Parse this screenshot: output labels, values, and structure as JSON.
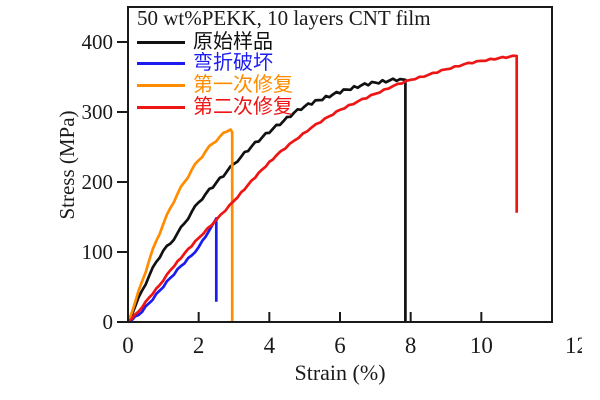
{
  "figure": {
    "background": "#ffffff",
    "axis_color": "#1a1a1a"
  },
  "chart_data": {
    "type": "line",
    "title": "50 wt%PEKK, 10 layers CNT film",
    "xlabel": "Strain (%)",
    "ylabel": "Stress (MPa)",
    "xlim": [
      0,
      12
    ],
    "ylim": [
      0,
      450
    ],
    "x_ticks": [
      0,
      2,
      4,
      6,
      8,
      10,
      12
    ],
    "x_tick_labels": [
      "0",
      "2",
      "4",
      "6",
      "8",
      "10",
      "12"
    ],
    "y_ticks": [
      0,
      100,
      200,
      300,
      400
    ],
    "y_tick_labels": [
      "0",
      "100",
      "200",
      "300",
      "400"
    ],
    "grid": false,
    "legend_position": "top-left-inside",
    "series": [
      {
        "id": "original-sample",
        "label": "原始样品",
        "color": "#111111",
        "wiggle": 1.3,
        "breaks_at": {
          "strain": 7.85,
          "peak_stress": 346,
          "drop_to": 0
        },
        "points": [
          [
            0,
            0
          ],
          [
            0.2,
            22
          ],
          [
            0.4,
            45
          ],
          [
            0.6,
            66
          ],
          [
            0.8,
            86
          ],
          [
            1.0,
            102
          ],
          [
            1.2,
            112
          ],
          [
            1.4,
            127
          ],
          [
            1.6,
            141
          ],
          [
            1.8,
            157
          ],
          [
            2.0,
            171
          ],
          [
            2.2,
            183
          ],
          [
            2.5,
            199
          ],
          [
            2.8,
            215
          ],
          [
            3.0,
            226
          ],
          [
            3.2,
            236
          ],
          [
            3.5,
            251
          ],
          [
            3.8,
            264
          ],
          [
            4.1,
            276
          ],
          [
            4.4,
            287
          ],
          [
            4.7,
            299
          ],
          [
            5.0,
            308
          ],
          [
            5.4,
            317
          ],
          [
            5.8,
            325
          ],
          [
            6.2,
            332
          ],
          [
            6.6,
            338
          ],
          [
            7.0,
            342
          ],
          [
            7.4,
            345
          ],
          [
            7.7,
            347
          ],
          [
            7.85,
            346
          ],
          [
            7.85,
            0
          ]
        ]
      },
      {
        "id": "bend-damaged",
        "label": "弯折破坏",
        "color": "#1c1cf0",
        "wiggle": 0.9,
        "breaks_at": {
          "strain": 2.5,
          "peak_stress": 148,
          "drop_to": 29
        },
        "points": [
          [
            0,
            0
          ],
          [
            0.3,
            10
          ],
          [
            0.6,
            27
          ],
          [
            0.9,
            45
          ],
          [
            1.2,
            63
          ],
          [
            1.5,
            80
          ],
          [
            1.8,
            95
          ],
          [
            2.0,
            107
          ],
          [
            2.2,
            122
          ],
          [
            2.35,
            135
          ],
          [
            2.5,
            148
          ],
          [
            2.5,
            29
          ]
        ]
      },
      {
        "id": "first-repair",
        "label": "第一次修复",
        "color": "#ff8c00",
        "wiggle": 1.3,
        "breaks_at": {
          "strain": 2.95,
          "peak_stress": 275,
          "drop_to": 0
        },
        "points": [
          [
            0,
            0
          ],
          [
            0.2,
            28
          ],
          [
            0.4,
            58
          ],
          [
            0.6,
            88
          ],
          [
            0.8,
            116
          ],
          [
            1.0,
            140
          ],
          [
            1.2,
            163
          ],
          [
            1.4,
            183
          ],
          [
            1.6,
            200
          ],
          [
            1.8,
            217
          ],
          [
            2.0,
            231
          ],
          [
            2.2,
            244
          ],
          [
            2.4,
            255
          ],
          [
            2.6,
            265
          ],
          [
            2.8,
            272
          ],
          [
            2.9,
            275
          ],
          [
            2.95,
            271
          ],
          [
            2.95,
            0
          ]
        ]
      },
      {
        "id": "second-repair",
        "label": "第二次修复",
        "color": "#ee1515",
        "wiggle": 0.6,
        "breaks_at": {
          "strain": 11.0,
          "peak_stress": 380,
          "drop_to": 156
        },
        "points": [
          [
            0,
            0
          ],
          [
            0.3,
            15
          ],
          [
            0.6,
            35
          ],
          [
            0.9,
            53
          ],
          [
            1.2,
            74
          ],
          [
            1.6,
            98
          ],
          [
            2.0,
            120
          ],
          [
            2.5,
            146
          ],
          [
            3.0,
            173
          ],
          [
            3.4,
            196
          ],
          [
            3.8,
            218
          ],
          [
            4.2,
            238
          ],
          [
            4.7,
            259
          ],
          [
            5.2,
            278
          ],
          [
            5.7,
            294
          ],
          [
            6.0,
            303
          ],
          [
            6.5,
            315
          ],
          [
            7.0,
            326
          ],
          [
            7.5,
            337
          ],
          [
            8.0,
            346
          ],
          [
            8.5,
            353
          ],
          [
            9.0,
            361
          ],
          [
            9.5,
            368
          ],
          [
            10.0,
            373
          ],
          [
            10.5,
            377
          ],
          [
            10.8,
            379
          ],
          [
            11.0,
            380
          ],
          [
            11.0,
            156
          ]
        ]
      }
    ]
  }
}
